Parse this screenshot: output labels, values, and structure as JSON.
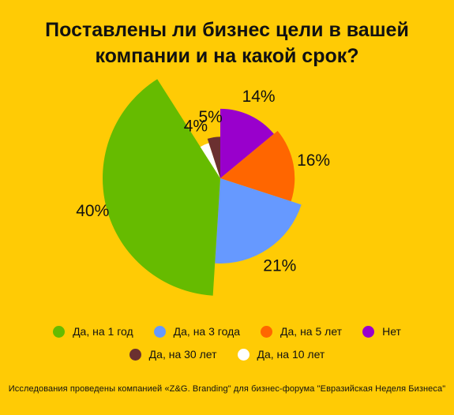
{
  "title_line1": "Поставлены ли бизнес цели в вашей",
  "title_line2": "компании и на какой срок?",
  "footnote": "Исследования проведены компанией «Z&G. Branding\" для бизнес-форума \"Евразийская Неделя Бизнеса\"",
  "colors": {
    "background": "#ffcb05"
  },
  "chart_data": {
    "type": "pie",
    "subtype": "polar-area",
    "start_angle_deg": 0,
    "direction": "clockwise",
    "slices": [
      {
        "label": "Нет",
        "value": 14,
        "display": "14%",
        "color": "#9900cc"
      },
      {
        "label": "Да, на 5 лет",
        "value": 16,
        "display": "16%",
        "color": "#ff6600"
      },
      {
        "label": "Да, на 3 года",
        "value": 21,
        "display": "21%",
        "color": "#6699ff"
      },
      {
        "label": "Да, на 1 год",
        "value": 40,
        "display": "40%",
        "color": "#66bb00"
      },
      {
        "label": "Да, на 10 лет",
        "value": 4,
        "display": "4%",
        "color": "#ffffff"
      },
      {
        "label": "Да, на 30 лет",
        "value": 5,
        "display": "5%",
        "color": "#6b3030"
      }
    ],
    "legend_position": "bottom",
    "legend_rows": [
      [
        {
          "label": "Да, на 1 год",
          "color": "#66bb00"
        },
        {
          "label": "Да, на 3 года",
          "color": "#6699ff"
        },
        {
          "label": "Да, на 5 лет",
          "color": "#ff6600"
        },
        {
          "label": "Нет",
          "color": "#9900cc"
        }
      ],
      [
        {
          "label": "Да, на 30 лет",
          "color": "#6b3030"
        },
        {
          "label": "Да, на 10 лет",
          "color": "#ffffff"
        }
      ]
    ]
  }
}
